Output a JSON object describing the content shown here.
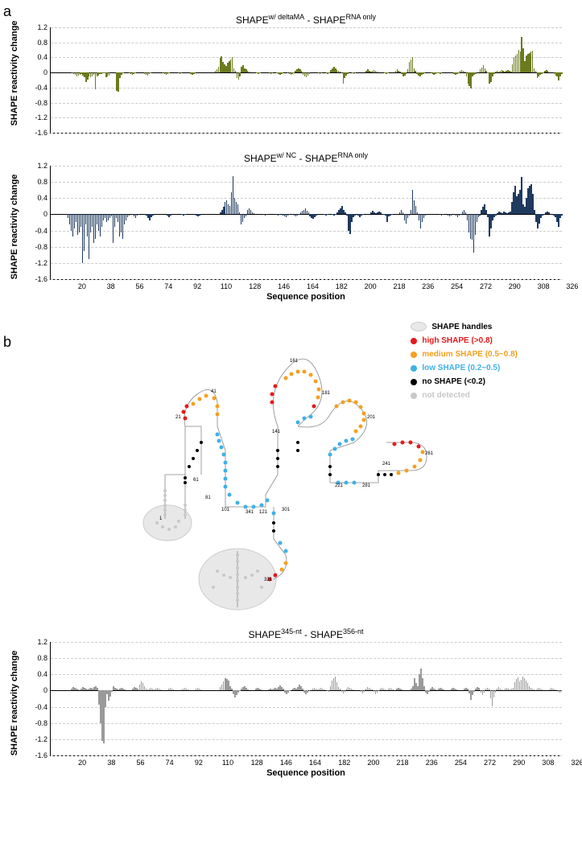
{
  "panelA": {
    "label": "a"
  },
  "panelB": {
    "label": "b"
  },
  "chart1": {
    "title_pre": "SHAPE",
    "title_sup1": "w/ deltaMA",
    "title_mid": " - SHAPE",
    "title_sup2": "RNA only",
    "ylabel": "SHAPE reactivity change",
    "ylim": [
      -1.6,
      1.2
    ],
    "yticks": [
      -1.6,
      -1.2,
      -0.8,
      -0.4,
      0,
      0.4,
      0.8,
      1.2
    ],
    "bar_color": "#6b7a1f",
    "values": [
      0,
      0,
      0,
      0,
      0,
      0,
      0,
      0,
      0,
      0,
      0,
      0,
      -0.02,
      -0.04,
      -0.06,
      -0.1,
      -0.08,
      -0.06,
      -0.04,
      -0.08,
      -0.12,
      -0.25,
      -0.18,
      -0.1,
      -0.12,
      -0.1,
      -0.06,
      -0.45,
      -0.1,
      -0.08,
      -0.05,
      -0.04,
      -0.02,
      -0.01,
      -0.12,
      -0.1,
      -0.08,
      0,
      0,
      0,
      0,
      -0.48,
      -0.52,
      -0.14,
      -0.06,
      -0.02,
      0,
      0,
      0,
      -0.02,
      -0.04,
      -0.06,
      -0.04,
      -0.02,
      0,
      0,
      0,
      0,
      0,
      -0.04,
      -0.06,
      -0.08,
      -0.04,
      -0.02,
      0,
      0,
      0,
      0,
      0,
      0,
      0,
      -0.02,
      -0.04,
      -0.06,
      -0.04,
      -0.02,
      0,
      0,
      0,
      0,
      0,
      -0.02,
      -0.04,
      -0.02,
      0,
      0,
      0,
      0,
      0,
      -0.04,
      -0.06,
      -0.04,
      -0.02,
      0,
      0,
      0,
      0,
      0,
      0,
      0,
      0,
      0,
      0,
      0,
      0,
      0.04,
      0.08,
      0.15,
      0.38,
      0.42,
      0.28,
      0.22,
      0.18,
      0.25,
      0.3,
      0.35,
      0.4,
      0.1,
      0.05,
      -0.15,
      -0.18,
      -0.1,
      0.15,
      0.2,
      0.12,
      0.08,
      0.04,
      0.02,
      0,
      0,
      0,
      0,
      -0.02,
      -0.04,
      -0.02,
      0,
      0,
      0,
      0,
      0,
      -0.02,
      -0.04,
      -0.02,
      0,
      0,
      -0.02,
      -0.04,
      -0.06,
      -0.04,
      -0.02,
      0,
      0,
      -0.02,
      -0.04,
      -0.06,
      -0.04,
      -0.02,
      0.04,
      0.08,
      0.12,
      0.08,
      0.04,
      -0.06,
      -0.1,
      -0.12,
      -0.08,
      -0.04,
      0,
      0,
      0,
      0,
      0,
      -0.02,
      -0.04,
      -0.02,
      0,
      0,
      -0.02,
      -0.04,
      -0.02,
      0.06,
      0.1,
      0.15,
      0.1,
      0.06,
      0.04,
      0.02,
      -0.02,
      -0.3,
      -0.15,
      -0.08,
      -0.04,
      0,
      0,
      -0.02,
      -0.04,
      -0.02,
      0,
      0,
      0,
      0,
      0,
      0,
      0.04,
      0.08,
      0.04,
      0.02,
      0.04,
      0.06,
      0.04,
      0.02,
      0,
      0,
      0,
      0,
      -0.02,
      -0.04,
      -0.02,
      0,
      0,
      0,
      0,
      0.04,
      0.08,
      0.04,
      0.02,
      -0.04,
      -0.1,
      -0.08,
      -0.04,
      0.08,
      0.28,
      0.35,
      0.4,
      0.1,
      0.04,
      -0.04,
      -0.08,
      -0.1,
      -0.06,
      -0.04,
      -0.02,
      0,
      0,
      0,
      -0.02,
      -0.04,
      -0.06,
      -0.04,
      -0.02,
      -0.02,
      -0.04,
      -0.02,
      0,
      0,
      0,
      0,
      0,
      0,
      0,
      -0.04,
      -0.06,
      -0.04,
      -0.02,
      0.04,
      0.06,
      0.04,
      0.02,
      -0.1,
      -0.3,
      -0.35,
      -0.42,
      -0.1,
      -0.06,
      -0.04,
      0,
      0,
      0.08,
      0.14,
      0.2,
      0.1,
      0.04,
      -0.02,
      -0.3,
      -0.25,
      -0.1,
      -0.04,
      0.02,
      0.04,
      0.02,
      0.04,
      0.06,
      0.04,
      0.02,
      0.04,
      0.06,
      0.04,
      0.02,
      0.22,
      0.4,
      0.45,
      0.5,
      0.6,
      0.55,
      0.95,
      0.65,
      0.3,
      0.45,
      0.5,
      0.52,
      0.55,
      0.58,
      0.12,
      0.04,
      -0.15,
      -0.1,
      -0.06,
      -0.04,
      -0.02,
      0.04,
      0.06,
      0.04,
      0,
      0,
      0,
      -0.04,
      -0.08,
      -0.1,
      -0.22,
      -0.1,
      -0.04,
      0
    ]
  },
  "chart2": {
    "title_pre": "SHAPE",
    "title_sup1": "w/ NC",
    "title_mid": " - SHAPE",
    "title_sup2": "RNA only",
    "ylabel": "SHAPE reactivity change",
    "xlabel": "Sequence position",
    "ylim": [
      -1.6,
      1.2
    ],
    "yticks": [
      -1.6,
      -1.2,
      -0.8,
      -0.4,
      0,
      0.4,
      0.8,
      1.2
    ],
    "xticks": [
      20,
      38,
      56,
      74,
      92,
      110,
      128,
      146,
      164,
      182,
      200,
      218,
      236,
      254,
      272,
      290,
      308,
      326
    ],
    "bar_color": "#1e3a5f",
    "values": [
      0,
      0,
      0,
      0,
      0,
      0,
      0,
      0,
      0,
      -0.1,
      -0.25,
      -0.4,
      -0.55,
      -0.35,
      -0.2,
      -0.5,
      -0.45,
      -0.3,
      -1.2,
      -0.9,
      -0.25,
      -0.55,
      -1.1,
      -0.45,
      -0.3,
      -0.7,
      -0.6,
      -0.25,
      -0.4,
      -0.55,
      -0.3,
      -0.15,
      -0.1,
      -0.2,
      -0.15,
      -0.1,
      -0.05,
      -0.7,
      -0.3,
      -0.1,
      -0.2,
      -0.55,
      -0.45,
      -0.6,
      -0.25,
      -0.15,
      -0.08,
      -0.04,
      0,
      -0.02,
      -0.06,
      -0.1,
      -0.04,
      -0.02,
      0,
      0,
      0,
      0,
      -0.04,
      -0.1,
      -0.15,
      -0.08,
      -0.04,
      0,
      0,
      0,
      0,
      0,
      0,
      0,
      0,
      -0.04,
      -0.08,
      -0.04,
      0,
      0,
      0,
      0,
      0,
      0,
      -0.02,
      -0.04,
      -0.02,
      0,
      0,
      0,
      0,
      0,
      0,
      -0.04,
      -0.06,
      -0.04,
      0,
      0,
      0,
      0,
      0,
      0,
      0,
      0,
      0,
      0,
      0,
      0,
      0.05,
      0.1,
      0.18,
      0.3,
      0.35,
      0.25,
      0.2,
      0.55,
      0.95,
      0.4,
      0.3,
      0.25,
      0.05,
      -0.25,
      -0.2,
      -0.1,
      -0.05,
      0.1,
      0.15,
      0.1,
      0.05,
      0.02,
      0,
      0,
      0,
      0,
      0,
      -0.02,
      -0.04,
      -0.02,
      0,
      0,
      0,
      0,
      0,
      -0.02,
      -0.04,
      -0.02,
      0,
      -0.04,
      -0.06,
      -0.08,
      -0.04,
      -0.02,
      0,
      -0.02,
      -0.04,
      -0.06,
      -0.04,
      -0.02,
      0.04,
      0.08,
      0.1,
      0.15,
      0.08,
      0.04,
      -0.06,
      -0.1,
      -0.12,
      -0.08,
      -0.04,
      0,
      0,
      0,
      0,
      -0.02,
      -0.04,
      -0.02,
      0,
      0,
      -0.02,
      -0.04,
      -0.02,
      0.05,
      0.1,
      0.15,
      0.2,
      0.1,
      0.04,
      -0.04,
      -0.4,
      -0.48,
      -0.2,
      -0.08,
      -0.04,
      0,
      -0.04,
      -0.08,
      -0.04,
      -0.02,
      0,
      0,
      0,
      0,
      0.04,
      0.08,
      0.04,
      0.02,
      0.04,
      0.06,
      0.04,
      0,
      -0.02,
      -0.04,
      -0.2,
      -0.06,
      -0.04,
      -0.02,
      0,
      0,
      0,
      0,
      0.05,
      0.1,
      0.04,
      -0.15,
      -0.22,
      -0.1,
      -0.04,
      0.1,
      0.6,
      0.35,
      0.2,
      0.05,
      -0.15,
      -0.35,
      -0.2,
      -0.1,
      -0.04,
      0,
      0,
      0,
      0,
      0,
      0,
      0,
      0,
      -0.02,
      -0.04,
      -0.02,
      0,
      0,
      -0.04,
      -0.06,
      -0.04,
      0,
      0,
      -0.04,
      -0.08,
      -0.04,
      -0.02,
      0.06,
      0.1,
      0.04,
      -0.15,
      -0.45,
      -0.6,
      -0.62,
      -0.95,
      -0.5,
      -0.2,
      -0.08,
      -0.04,
      0.1,
      0.18,
      0.24,
      0.1,
      -0.08,
      -0.55,
      -0.35,
      -0.15,
      -0.08,
      -0.04,
      0.02,
      0.06,
      0.04,
      0.02,
      0.06,
      0.04,
      0.02,
      0.04,
      0.06,
      0.3,
      0.55,
      0.7,
      0.45,
      0.5,
      0.6,
      0.92,
      0.25,
      0.18,
      0.4,
      0.65,
      0.7,
      0.75,
      0.5,
      0.1,
      -0.2,
      -0.35,
      -0.22,
      -0.1,
      -0.04,
      0,
      0.04,
      0.06,
      0.04,
      0,
      0,
      -0.04,
      -0.08,
      -0.2,
      -0.3,
      -0.1,
      -0.04,
      0
    ]
  },
  "chart3": {
    "title_pre": "SHAPE",
    "title_sup1": "345-nt",
    "title_mid": " - SHAPE",
    "title_sup2": "356-nt",
    "ylabel": "SHAPE reactivity change",
    "xlabel": "Sequence position",
    "ylim": [
      -1.6,
      1.2
    ],
    "yticks": [
      -1.6,
      -1.2,
      -0.8,
      -0.4,
      0,
      0.4,
      0.8,
      1.2
    ],
    "xticks": [
      20,
      38,
      56,
      74,
      92,
      110,
      128,
      146,
      164,
      182,
      200,
      218,
      236,
      254,
      272,
      290,
      308,
      326
    ],
    "bar_color": "#9a9a9a",
    "values": [
      0,
      0,
      0,
      0,
      0,
      0,
      0,
      0,
      0,
      0,
      0,
      0.04,
      0.08,
      0.06,
      0.04,
      0.02,
      0,
      0.04,
      0.08,
      0.06,
      0.04,
      0.02,
      0.04,
      0.06,
      0.04,
      0.08,
      0.1,
      0.06,
      -0.35,
      -0.8,
      -1.25,
      -1.3,
      -0.4,
      -0.1,
      -0.25,
      -0.15,
      -0.04,
      0.1,
      0.06,
      0.04,
      0.02,
      0.04,
      0.06,
      0.04,
      0.02,
      0,
      0,
      0,
      0,
      0.04,
      0.08,
      0.06,
      0.04,
      0.15,
      0.22,
      0.18,
      0.1,
      0.04,
      0.02,
      0.04,
      0.06,
      0.04,
      0.02,
      0.04,
      0.06,
      0.04,
      0.02,
      0,
      0,
      0,
      0,
      0.04,
      0.06,
      0.04,
      0.02,
      0,
      0,
      0,
      0,
      0.02,
      0.04,
      0.06,
      0.04,
      0.02,
      0,
      0,
      0,
      0,
      0.04,
      0.06,
      0.04,
      0.02,
      0,
      0,
      0,
      0,
      0,
      0,
      0,
      0,
      0,
      0,
      0,
      0.08,
      0.14,
      0.22,
      0.3,
      0.28,
      0.24,
      0.1,
      0.04,
      -0.1,
      -0.18,
      -0.12,
      -0.06,
      -0.02,
      0.04,
      0.08,
      0.1,
      0.06,
      0.02,
      0,
      0,
      0,
      0,
      0.04,
      0.06,
      0.04,
      0.02,
      0,
      0,
      0,
      0,
      0.02,
      0.04,
      0.02,
      0.04,
      0.06,
      0.04,
      0.08,
      0.12,
      0.08,
      0.04,
      -0.06,
      -0.1,
      -0.06,
      -0.02,
      0,
      0.04,
      0.06,
      0.04,
      0.08,
      0.14,
      0.1,
      0.04,
      -0.06,
      -0.1,
      -0.06,
      -0.02,
      0,
      0.04,
      0.06,
      0.04,
      0.02,
      0.04,
      0.06,
      0.04,
      0.02,
      0,
      -0.02,
      -0.04,
      0.1,
      0.25,
      0.3,
      0.35,
      0.2,
      0.08,
      0.04,
      -0.04,
      -0.08,
      -0.04,
      0.04,
      0.08,
      0.06,
      0.04,
      0.02,
      0,
      0,
      0,
      0,
      -0.04,
      -0.08,
      -0.04,
      0.04,
      0.08,
      0.06,
      0.04,
      0.02,
      -0.04,
      -0.1,
      -0.06,
      -0.02,
      0.04,
      0.06,
      0.04,
      0.02,
      0,
      0.04,
      0.06,
      0.04,
      0.02,
      0,
      0.04,
      0.06,
      0.04,
      0.02,
      0,
      0,
      0,
      0,
      0,
      0.04,
      0.1,
      0.3,
      0.18,
      0.1,
      0.4,
      0.55,
      0.3,
      0.1,
      -0.06,
      -0.1,
      -0.04,
      0.04,
      0.08,
      0.04,
      0.02,
      0,
      0.04,
      0.06,
      0.04,
      0.02,
      0,
      0,
      0,
      0,
      0.04,
      0.06,
      0.04,
      0.02,
      0,
      0,
      0,
      0,
      0.04,
      0.06,
      0.04,
      -0.08,
      -0.22,
      -0.12,
      -0.04,
      0.04,
      0.08,
      0.06,
      -0.06,
      -0.12,
      -0.06,
      0.04,
      0.06,
      0.04,
      -0.2,
      -0.38,
      -0.18,
      -0.06,
      0.04,
      0.08,
      0.04,
      0.02,
      0,
      0.04,
      0.06,
      0.04,
      0.02,
      0.04,
      0.06,
      0.2,
      0.28,
      0.32,
      0.22,
      0.26,
      0.34,
      0.3,
      0.24,
      0.18,
      0.1,
      0.06,
      0.04,
      0.02,
      0,
      0.04,
      0.06,
      0.04,
      0.02,
      0,
      0,
      0,
      0,
      0.04,
      0.06,
      0.04,
      0.02,
      0,
      -0.04,
      -0.06,
      -0.04,
      0
    ]
  },
  "legend": {
    "handles": "SHAPE handles",
    "high": {
      "text": "high SHAPE (>0.8)",
      "color": "#e41a1c"
    },
    "medium": {
      "text": "medium SHAPE (0.5~0.8)",
      "color": "#f4a020"
    },
    "low": {
      "text": "low SHAPE (0.2~0.5)",
      "color": "#3fb1e5"
    },
    "none": {
      "text": "no SHAPE (<0.2)",
      "color": "#000000"
    },
    "nd": {
      "text": "not detected",
      "color": "#c8c8c8"
    }
  },
  "structure": {
    "handle_bg": "#e8e8e8",
    "handle_border": "#cccccc",
    "residue_labels": [
      "1",
      "21",
      "41",
      "61",
      "81",
      "101",
      "121",
      "141",
      "161",
      "181",
      "201",
      "221",
      "241",
      "261",
      "281",
      "301",
      "321",
      "341"
    ],
    "high_color": "#e41a1c",
    "medium_color": "#f4a020",
    "low_color": "#3fb1e5",
    "none_color": "#000000",
    "nd_color": "#c8c8c8"
  }
}
